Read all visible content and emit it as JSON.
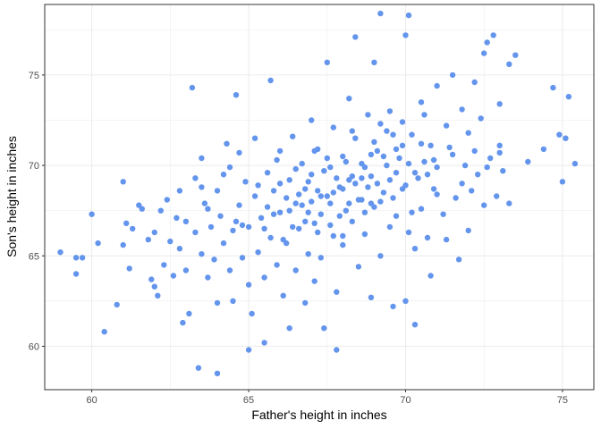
{
  "chart_data": {
    "type": "scatter",
    "title": "",
    "xlabel": "Father's height in inches",
    "ylabel": "Son's height in inches",
    "xlim": [
      58.5,
      76
    ],
    "ylim": [
      57.6,
      78.9
    ],
    "x_ticks": [
      60,
      65,
      70,
      75
    ],
    "y_ticks": [
      60,
      65,
      70,
      75
    ],
    "x_tick_labels": [
      "60",
      "65",
      "70",
      "75"
    ],
    "y_tick_labels": [
      "60",
      "65",
      "70",
      "75"
    ],
    "grid": true,
    "legend": "none",
    "point_color": "#6495ed",
    "series": [
      {
        "points": [
          [
            59.0,
            65.2
          ],
          [
            59.5,
            64.9
          ],
          [
            59.5,
            64.0
          ],
          [
            59.7,
            64.9
          ],
          [
            60.0,
            67.3
          ],
          [
            60.2,
            65.7
          ],
          [
            60.4,
            60.8
          ],
          [
            60.8,
            62.3
          ],
          [
            61.0,
            69.1
          ],
          [
            61.0,
            65.6
          ],
          [
            61.1,
            66.8
          ],
          [
            61.2,
            64.3
          ],
          [
            61.3,
            66.5
          ],
          [
            61.5,
            67.8
          ],
          [
            61.6,
            67.6
          ],
          [
            61.8,
            65.9
          ],
          [
            61.9,
            63.7
          ],
          [
            62.0,
            63.3
          ],
          [
            62.0,
            66.3
          ],
          [
            62.1,
            62.8
          ],
          [
            62.2,
            67.5
          ],
          [
            62.3,
            64.5
          ],
          [
            62.4,
            68.1
          ],
          [
            62.5,
            65.8
          ],
          [
            62.6,
            63.9
          ],
          [
            62.7,
            67.1
          ],
          [
            62.8,
            65.4
          ],
          [
            62.8,
            68.6
          ],
          [
            62.9,
            61.3
          ],
          [
            63.0,
            66.9
          ],
          [
            63.0,
            64.2
          ],
          [
            63.1,
            61.8
          ],
          [
            63.2,
            74.3
          ],
          [
            63.3,
            69.3
          ],
          [
            63.3,
            66.3
          ],
          [
            63.4,
            58.8
          ],
          [
            63.5,
            65.1
          ],
          [
            63.5,
            70.4
          ],
          [
            63.6,
            67.9
          ],
          [
            63.7,
            63.8
          ],
          [
            63.8,
            66.6
          ],
          [
            63.9,
            64.8
          ],
          [
            64.0,
            62.4
          ],
          [
            64.0,
            58.5
          ],
          [
            64.0,
            68.6
          ],
          [
            64.1,
            67.2
          ],
          [
            64.2,
            65.7
          ],
          [
            64.3,
            71.2
          ],
          [
            64.4,
            64.2
          ],
          [
            64.4,
            69.9
          ],
          [
            64.5,
            66.4
          ],
          [
            64.5,
            62.5
          ],
          [
            64.6,
            73.9
          ],
          [
            64.7,
            70.7
          ],
          [
            64.7,
            67.8
          ],
          [
            64.8,
            64.9
          ],
          [
            64.9,
            69.1
          ],
          [
            65.0,
            63.4
          ],
          [
            65.0,
            66.6
          ],
          [
            65.0,
            59.8
          ],
          [
            65.1,
            61.8
          ],
          [
            65.2,
            68.3
          ],
          [
            65.2,
            71.5
          ],
          [
            65.3,
            65.2
          ],
          [
            65.4,
            67.1
          ],
          [
            65.5,
            60.2
          ],
          [
            65.5,
            63.8
          ],
          [
            65.6,
            69.6
          ],
          [
            65.7,
            66.0
          ],
          [
            65.7,
            74.7
          ],
          [
            65.8,
            68.6
          ],
          [
            65.9,
            64.5
          ],
          [
            66.0,
            70.8
          ],
          [
            66.0,
            67.4
          ],
          [
            66.1,
            62.8
          ],
          [
            66.2,
            65.7
          ],
          [
            66.3,
            69.2
          ],
          [
            66.3,
            61.0
          ],
          [
            66.4,
            71.6
          ],
          [
            66.5,
            67.9
          ],
          [
            66.5,
            64.2
          ],
          [
            66.6,
            66.5
          ],
          [
            66.7,
            70.1
          ],
          [
            66.8,
            68.7
          ],
          [
            66.8,
            62.4
          ],
          [
            66.9,
            65.1
          ],
          [
            67.0,
            72.5
          ],
          [
            67.0,
            69.5
          ],
          [
            67.1,
            66.8
          ],
          [
            67.1,
            63.6
          ],
          [
            67.2,
            70.9
          ],
          [
            67.3,
            67.3
          ],
          [
            67.3,
            64.9
          ],
          [
            67.4,
            61.0
          ],
          [
            67.5,
            68.3
          ],
          [
            67.5,
            75.7
          ],
          [
            67.6,
            69.9
          ],
          [
            67.7,
            66.1
          ],
          [
            67.7,
            72.1
          ],
          [
            67.8,
            63.0
          ],
          [
            67.8,
            59.8
          ],
          [
            67.9,
            68.8
          ],
          [
            68.0,
            70.5
          ],
          [
            68.0,
            65.6
          ],
          [
            68.1,
            67.5
          ],
          [
            68.2,
            73.7
          ],
          [
            68.2,
            69.2
          ],
          [
            68.3,
            66.9
          ],
          [
            68.4,
            71.5
          ],
          [
            68.4,
            77.1
          ],
          [
            68.5,
            64.4
          ],
          [
            68.6,
            68.1
          ],
          [
            68.6,
            70.1
          ],
          [
            68.7,
            66.2
          ],
          [
            68.8,
            72.8
          ],
          [
            68.9,
            69.4
          ],
          [
            68.9,
            62.7
          ],
          [
            69.0,
            67.7
          ],
          [
            69.0,
            75.7
          ],
          [
            69.1,
            70.8
          ],
          [
            69.2,
            65.0
          ],
          [
            69.2,
            78.4
          ],
          [
            69.3,
            68.5
          ],
          [
            69.4,
            71.9
          ],
          [
            69.5,
            66.6
          ],
          [
            69.5,
            73.0
          ],
          [
            69.6,
            62.2
          ],
          [
            69.7,
            69.6
          ],
          [
            69.7,
            67.2
          ],
          [
            69.8,
            70.4
          ],
          [
            69.9,
            72.4
          ],
          [
            70.0,
            77.2
          ],
          [
            70.0,
            68.9
          ],
          [
            70.0,
            62.5
          ],
          [
            70.1,
            66.3
          ],
          [
            70.1,
            78.3
          ],
          [
            70.2,
            71.7
          ],
          [
            70.3,
            65.4
          ],
          [
            70.3,
            61.2
          ],
          [
            70.4,
            69.3
          ],
          [
            70.5,
            67.6
          ],
          [
            70.5,
            73.5
          ],
          [
            70.6,
            70.2
          ],
          [
            70.7,
            66.0
          ],
          [
            70.8,
            71.1
          ],
          [
            70.8,
            63.9
          ],
          [
            70.9,
            68.7
          ],
          [
            71.0,
            74.4
          ],
          [
            71.0,
            69.9
          ],
          [
            71.2,
            67.3
          ],
          [
            71.3,
            72.2
          ],
          [
            71.3,
            65.9
          ],
          [
            71.5,
            70.6
          ],
          [
            71.5,
            75.0
          ],
          [
            71.6,
            68.2
          ],
          [
            71.7,
            64.8
          ],
          [
            71.8,
            73.1
          ],
          [
            71.9,
            70.0
          ],
          [
            72.0,
            66.4
          ],
          [
            72.0,
            71.8
          ],
          [
            72.1,
            68.6
          ],
          [
            72.2,
            74.6
          ],
          [
            72.3,
            69.5
          ],
          [
            72.4,
            72.6
          ],
          [
            72.5,
            76.2
          ],
          [
            72.5,
            67.8
          ],
          [
            72.6,
            76.8
          ],
          [
            72.7,
            70.4
          ],
          [
            72.8,
            77.2
          ],
          [
            72.9,
            68.3
          ],
          [
            73.0,
            73.4
          ],
          [
            73.0,
            71.1
          ],
          [
            73.1,
            69.7
          ],
          [
            73.3,
            67.9
          ],
          [
            73.3,
            75.6
          ],
          [
            73.5,
            76.1
          ],
          [
            73.9,
            70.2
          ],
          [
            74.4,
            70.9
          ],
          [
            74.7,
            74.3
          ],
          [
            74.9,
            71.7
          ],
          [
            75.0,
            69.1
          ],
          [
            75.1,
            71.5
          ],
          [
            75.2,
            73.8
          ],
          [
            75.4,
            70.1
          ],
          [
            63.5,
            68.8
          ],
          [
            63.7,
            67.6
          ],
          [
            64.2,
            69.5
          ],
          [
            64.6,
            66.9
          ],
          [
            65.3,
            68.9
          ],
          [
            65.6,
            67.7
          ],
          [
            65.9,
            70.3
          ],
          [
            66.2,
            68.2
          ],
          [
            66.4,
            66.6
          ],
          [
            66.7,
            67.8
          ],
          [
            66.9,
            69.1
          ],
          [
            67.0,
            68.0
          ],
          [
            67.2,
            68.6
          ],
          [
            67.4,
            69.7
          ],
          [
            67.6,
            67.9
          ],
          [
            67.8,
            69.3
          ],
          [
            68.0,
            68.7
          ],
          [
            68.1,
            70.2
          ],
          [
            68.3,
            69.4
          ],
          [
            68.5,
            68.1
          ],
          [
            68.7,
            69.9
          ],
          [
            68.9,
            70.6
          ],
          [
            69.1,
            69.0
          ],
          [
            69.3,
            70.5
          ],
          [
            69.5,
            69.2
          ],
          [
            69.7,
            70.9
          ],
          [
            69.9,
            68.7
          ],
          [
            70.1,
            70.1
          ],
          [
            70.3,
            69.6
          ],
          [
            70.5,
            71.2
          ],
          [
            70.7,
            69.5
          ],
          [
            70.9,
            70.3
          ],
          [
            66.0,
            69.0
          ],
          [
            66.3,
            67.5
          ],
          [
            66.6,
            68.4
          ],
          [
            66.8,
            66.9
          ],
          [
            67.1,
            70.8
          ],
          [
            67.3,
            68.3
          ],
          [
            67.6,
            66.7
          ],
          [
            67.9,
            67.2
          ],
          [
            68.2,
            67.9
          ],
          [
            68.4,
            69.0
          ],
          [
            68.7,
            67.4
          ],
          [
            68.8,
            68.8
          ],
          [
            69.0,
            71.3
          ],
          [
            69.2,
            68.0
          ],
          [
            69.4,
            70.0
          ],
          [
            69.6,
            71.7
          ],
          [
            65.5,
            66.5
          ],
          [
            65.8,
            67.3
          ],
          [
            66.1,
            65.9
          ],
          [
            66.5,
            69.8
          ],
          [
            66.9,
            67.4
          ],
          [
            67.2,
            66.3
          ],
          [
            67.5,
            70.4
          ],
          [
            67.7,
            68.5
          ],
          [
            68.0,
            66.1
          ],
          [
            68.3,
            71.9
          ],
          [
            68.6,
            69.3
          ],
          [
            68.9,
            67.9
          ],
          [
            69.2,
            72.3
          ],
          [
            69.6,
            68.2
          ],
          [
            69.9,
            71.1
          ],
          [
            70.2,
            67.4
          ],
          [
            70.6,
            72.8
          ],
          [
            71.0,
            68.4
          ],
          [
            71.4,
            71.0
          ],
          [
            71.8,
            69.0
          ],
          [
            72.2,
            70.8
          ],
          [
            72.6,
            69.9
          ],
          [
            73.0,
            70.7
          ],
          [
            64.8,
            66.7
          ]
        ]
      }
    ]
  }
}
